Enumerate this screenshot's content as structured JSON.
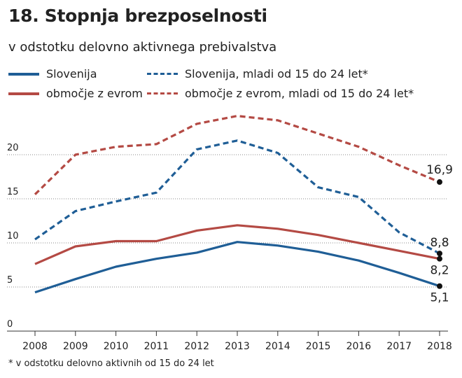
{
  "header": {
    "title": "18. Stopnja brezposelnosti",
    "subtitle": "v odstotku delovno aktivnega prebivalstva"
  },
  "legend": {
    "items": [
      {
        "label": "Slovenija",
        "color": "#1f5e96",
        "style": "solid"
      },
      {
        "label": "Slovenija, mladi od 15 do 24 let*",
        "color": "#1f5e96",
        "style": "dashed"
      },
      {
        "label": "območje z evrom",
        "color": "#b44a44",
        "style": "solid"
      },
      {
        "label": "območje z evrom, mladi od 15 do 24 let*",
        "color": "#b44a44",
        "style": "dashed"
      }
    ]
  },
  "footnote": "* v odstotku delovno aktivnih od 15 do 24 let",
  "chart_data": {
    "type": "line",
    "title": "18. Stopnja brezposelnosti",
    "subtitle": "v odstotku delovno aktivnega prebivalstva",
    "xlabel": "",
    "ylabel": "",
    "x": [
      "2008",
      "2009",
      "2010",
      "2011",
      "2012",
      "2013",
      "2014",
      "2015",
      "2016",
      "2017",
      "2018"
    ],
    "ylim": [
      0,
      25
    ],
    "yticks": [
      0,
      5,
      10,
      15,
      20
    ],
    "ytick_labels": [
      "0",
      "5",
      "10",
      "15",
      "20"
    ],
    "grid": true,
    "series": [
      {
        "name": "Slovenija",
        "color": "#1f5e96",
        "style": "solid",
        "values": [
          4.4,
          5.9,
          7.3,
          8.2,
          8.9,
          10.1,
          9.7,
          9.0,
          8.0,
          6.6,
          5.1
        ],
        "end_label": "5,1"
      },
      {
        "name": "Slovenija, mladi od 15 do 24 let*",
        "color": "#1f5e96",
        "style": "dashed",
        "values": [
          10.4,
          13.6,
          14.7,
          15.7,
          20.6,
          21.6,
          20.2,
          16.3,
          15.2,
          11.2,
          8.8
        ],
        "end_label": "8,8"
      },
      {
        "name": "območje z evrom",
        "color": "#b44a44",
        "style": "solid",
        "values": [
          7.6,
          9.6,
          10.2,
          10.2,
          11.4,
          12.0,
          11.6,
          10.9,
          10.0,
          9.1,
          8.2
        ],
        "end_label": "8,2"
      },
      {
        "name": "območje z evrom, mladi od 15 do 24 let*",
        "color": "#b44a44",
        "style": "dashed",
        "values": [
          15.5,
          20.0,
          20.9,
          21.2,
          23.5,
          24.4,
          23.9,
          22.4,
          20.9,
          18.8,
          16.9
        ],
        "end_label": "16,9"
      }
    ]
  }
}
